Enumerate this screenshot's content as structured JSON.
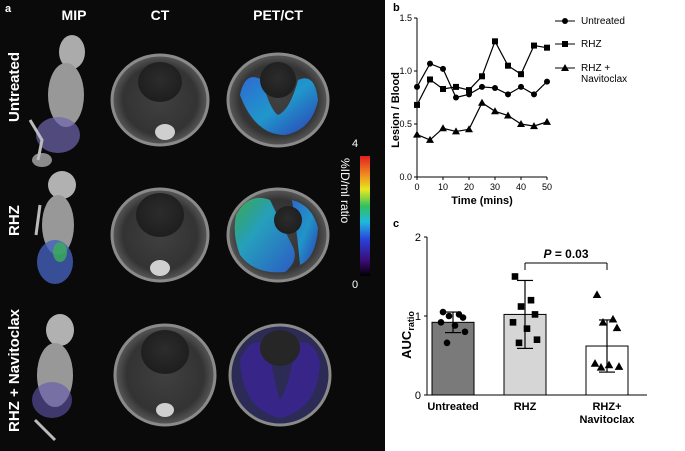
{
  "panel_a": {
    "letter": "a",
    "columns": [
      "MIP",
      "CT",
      "PET/CT"
    ],
    "rows": [
      "Untreated",
      "RHZ",
      "RHZ + Navitoclax"
    ],
    "colorbar": {
      "max": "4",
      "min": "0",
      "title": "%ID/ml ratio"
    }
  },
  "panel_b": {
    "letter": "b"
  },
  "panel_c": {
    "letter": "c"
  },
  "chart_data": [
    {
      "type": "line",
      "panel": "b",
      "xlabel": "Time (mins)",
      "ylabel": "Lesion / Blood",
      "xlim": [
        0,
        50
      ],
      "ylim": [
        0,
        1.5
      ],
      "xticks": [
        "0",
        "10",
        "20",
        "30",
        "40",
        "50"
      ],
      "yticks": [
        "0.0",
        "0.5",
        "1.0",
        "1.5"
      ],
      "x": [
        0,
        5,
        10,
        15,
        20,
        25,
        30,
        35,
        40,
        45,
        50
      ],
      "series": [
        {
          "name": "Untreated",
          "marker": "circle",
          "values": [
            0.85,
            1.07,
            1.02,
            0.75,
            0.78,
            0.85,
            0.84,
            0.78,
            0.85,
            0.78,
            0.9
          ]
        },
        {
          "name": "RHZ",
          "marker": "square",
          "values": [
            0.68,
            0.92,
            0.83,
            0.85,
            0.82,
            0.95,
            1.28,
            1.05,
            0.97,
            1.24,
            1.22
          ]
        },
        {
          "name": "RHZ + Navitoclax",
          "marker": "triangle",
          "values": [
            0.4,
            0.35,
            0.46,
            0.43,
            0.45,
            0.7,
            0.62,
            0.58,
            0.5,
            0.48,
            0.52
          ]
        }
      ],
      "legend": [
        "Untreated",
        "RHZ",
        "RHZ +\nNavitoclax"
      ]
    },
    {
      "type": "bar",
      "panel": "c",
      "categories": [
        "Untreated",
        "RHZ",
        "RHZ+\nNavitoclax"
      ],
      "values": [
        0.92,
        1.02,
        0.62
      ],
      "errors": [
        0.13,
        0.43,
        0.33
      ],
      "bar_colors": [
        "#7a7a7a",
        "#d6d6d6",
        "#ffffff"
      ],
      "points": [
        [
          1.05,
          1.02,
          1.0,
          0.98,
          0.92,
          0.88,
          0.8,
          0.66
        ],
        [
          1.5,
          1.2,
          1.12,
          1.02,
          0.92,
          0.84,
          0.7,
          0.66
        ],
        [
          1.27,
          0.96,
          0.92,
          0.85,
          0.4,
          0.38,
          0.36,
          0.35
        ]
      ],
      "point_markers": [
        "circle",
        "square",
        "triangle"
      ],
      "ylabel": "AUC",
      "ylabel_sub": "ratio",
      "ylim": [
        0,
        2
      ],
      "yticks": [
        "0",
        "1",
        "2"
      ],
      "annotation": {
        "p_label": "P",
        "p_value": " = 0.03"
      }
    }
  ]
}
